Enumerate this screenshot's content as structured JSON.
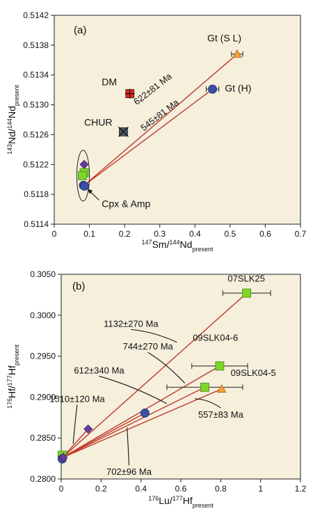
{
  "chart_data": [
    {
      "panel_label": "(a)",
      "type": "scatter",
      "xlabel": {
        "sup": "147",
        "main": "Sm/",
        "sup2": "144",
        "main2": "Nd",
        "sub": "present"
      },
      "ylabel": {
        "sup": "143",
        "main": "Nd/",
        "sup2": "144",
        "main2": "Nd",
        "sub": "present"
      },
      "xlim": [
        0,
        0.7
      ],
      "ylim": [
        0.5114,
        0.5142
      ],
      "xticks": [
        0,
        0.1,
        0.2,
        0.3,
        0.4,
        0.5,
        0.6,
        0.7
      ],
      "xtick_labels": [
        "0",
        "0.1",
        "0.2",
        "0.3",
        "0.4",
        "0.5",
        "0.6",
        "0.7"
      ],
      "yticks": [
        0.5114,
        0.5118,
        0.5122,
        0.5126,
        0.513,
        0.5134,
        0.5138,
        0.5142
      ],
      "ytick_labels": [
        "0.5114",
        "0.5118",
        "0.5122",
        "0.5126",
        "0.5130",
        "0.5134",
        "0.5138",
        "0.5142"
      ],
      "background": "#f5efdc",
      "points": [
        {
          "id": "gt-sl",
          "x": 0.52,
          "y": 0.51368,
          "xerr": 0.016,
          "marker": "triangle",
          "color": "#f4a13c",
          "label": "Gt (S L)"
        },
        {
          "id": "gt-h",
          "x": 0.45,
          "y": 0.51321,
          "xerr": 0.018,
          "marker": "circle",
          "color": "#3a4fa8",
          "label": "Gt (H)"
        },
        {
          "id": "dm",
          "x": 0.215,
          "y": 0.51315,
          "marker": "square-plus",
          "color": "#e0261d",
          "label": "DM"
        },
        {
          "id": "chur",
          "x": 0.1967,
          "y": 0.512638,
          "marker": "square-x",
          "color": "#4a5866",
          "label": "CHUR"
        },
        {
          "id": "cpx-1",
          "x": 0.085,
          "y": 0.5122,
          "marker": "diamond",
          "color": "#6a3c9c"
        },
        {
          "id": "cpx-2",
          "x": 0.085,
          "y": 0.51209,
          "marker": "square",
          "color": "#7fd52a"
        },
        {
          "id": "cpx-3",
          "x": 0.08,
          "y": 0.51205,
          "marker": "square",
          "color": "#7fd52a"
        },
        {
          "id": "cpx-4",
          "x": 0.083,
          "y": 0.51192,
          "marker": "circle",
          "color": "#3a4fa8"
        },
        {
          "id": "cpx-5",
          "x": 0.086,
          "y": 0.51191,
          "marker": "circle",
          "color": "#3a4fa8"
        }
      ],
      "lines": [
        {
          "from": [
            0.085,
            0.51192
          ],
          "to": [
            0.52,
            0.51368
          ],
          "color": "#c0392b"
        },
        {
          "from": [
            0.085,
            0.51192
          ],
          "to": [
            0.45,
            0.51321
          ],
          "color": "#c0392b"
        }
      ],
      "ellipse": {
        "cx": 0.082,
        "cy": 0.51205,
        "rx": 0.018,
        "ry": 0.00034
      },
      "texts": [
        {
          "id": "gt-sl-label",
          "text": "Gt (S L)",
          "x": 0.435,
          "y": 0.51385
        },
        {
          "id": "gt-h-label",
          "text": "Gt (H)",
          "x": 0.485,
          "y": 0.51318
        },
        {
          "id": "dm-label",
          "text": "DM",
          "x": 0.135,
          "y": 0.51326
        },
        {
          "id": "chur-label",
          "text": "CHUR",
          "x": 0.085,
          "y": 0.51272
        }
      ],
      "ages": [
        {
          "id": "age-622",
          "text": "622±81 Ma",
          "x": 0.285,
          "y": 0.51318,
          "angle": -38
        },
        {
          "id": "age-545",
          "text": "545±81 Ma",
          "x": 0.305,
          "y": 0.51283,
          "angle": -38
        }
      ],
      "annotation": {
        "text": "Cpx & Amp",
        "tx": 0.135,
        "ty": 0.51163,
        "ax": 0.095,
        "ay": 0.51187
      }
    },
    {
      "panel_label": "(b)",
      "type": "scatter",
      "xlabel": {
        "sup": "176",
        "main": "Lu/",
        "sup2": "177",
        "main2": "Hf",
        "sub": "present"
      },
      "ylabel": {
        "sup": "176",
        "main": "Hf/",
        "sup2": "177",
        "main2": "Hf",
        "sub": "present"
      },
      "xlim": [
        0,
        1.2
      ],
      "ylim": [
        0.28,
        0.305
      ],
      "xticks": [
        0,
        0.2,
        0.4,
        0.6,
        0.8,
        1.0,
        1.2
      ],
      "xtick_labels": [
        "0",
        "0.2",
        "0.4",
        "0.6",
        "0.8",
        "1",
        "1.2"
      ],
      "yticks": [
        0.28,
        0.285,
        0.29,
        0.295,
        0.3,
        0.305
      ],
      "ytick_labels": [
        "0.2800",
        "0.2850",
        "0.2900",
        "0.2950",
        "0.3000",
        "0.3050"
      ],
      "background": "#f5efdc",
      "points": [
        {
          "id": "07slk25",
          "x": 0.93,
          "y": 0.3027,
          "xerr": 0.12,
          "marker": "square",
          "color": "#7fd52a",
          "label": "07SLK25"
        },
        {
          "id": "09slk04-6",
          "x": 0.795,
          "y": 0.2938,
          "xerr": 0.14,
          "marker": "square",
          "color": "#7fd52a",
          "label": "09SLK04-6"
        },
        {
          "id": "09slk04-5",
          "x": 0.72,
          "y": 0.2912,
          "xerr": 0.19,
          "marker": "square",
          "color": "#7fd52a",
          "label": "09SLK04-5"
        },
        {
          "id": "tri-b",
          "x": 0.805,
          "y": 0.291,
          "marker": "triangle",
          "color": "#f4a13c"
        },
        {
          "id": "circ-042",
          "x": 0.42,
          "y": 0.28805,
          "marker": "circle",
          "color": "#3a4fa8"
        },
        {
          "id": "dia-014",
          "x": 0.135,
          "y": 0.2861,
          "marker": "diamond",
          "color": "#6a3c9c"
        },
        {
          "id": "base-sq",
          "x": 0.005,
          "y": 0.2829,
          "marker": "square",
          "color": "#7fd52a"
        },
        {
          "id": "base-c1",
          "x": 0.005,
          "y": 0.28245,
          "marker": "circle",
          "color": "#3a4fa8"
        },
        {
          "id": "base-d1",
          "x": 0.01,
          "y": 0.28265,
          "marker": "diamond",
          "color": "#6a3c9c"
        }
      ],
      "lines": [
        {
          "from": [
            0.005,
            0.2826
          ],
          "to": [
            0.93,
            0.3027
          ],
          "color": "#c0392b"
        },
        {
          "from": [
            0.005,
            0.2826
          ],
          "to": [
            0.795,
            0.2938
          ],
          "color": "#c0392b"
        },
        {
          "from": [
            0.005,
            0.2826
          ],
          "to": [
            0.72,
            0.2912
          ],
          "color": "#c0392b"
        },
        {
          "from": [
            0.005,
            0.2826
          ],
          "to": [
            0.805,
            0.291
          ],
          "color": "#c0392b"
        },
        {
          "from": [
            0.005,
            0.2826
          ],
          "to": [
            0.42,
            0.28805
          ],
          "color": "#c0392b"
        },
        {
          "from": [
            0.005,
            0.2826
          ],
          "to": [
            0.135,
            0.2861
          ],
          "color": "#c0392b"
        }
      ],
      "ages": [
        {
          "id": "age-1132",
          "text": "1132±270 Ma",
          "tx": 0.35,
          "ty": 0.2986,
          "px": 0.58,
          "py": 0.2967
        },
        {
          "id": "age-744",
          "text": "744±270 Ma",
          "tx": 0.435,
          "ty": 0.2958,
          "px": 0.62,
          "py": 0.2917
        },
        {
          "id": "age-612",
          "text": "612±340 Ma",
          "tx": 0.19,
          "ty": 0.2929,
          "px": 0.53,
          "py": 0.2892
        },
        {
          "id": "age-1510",
          "text": "1510±120 Ma",
          "tx": 0.08,
          "ty": 0.2894,
          "px": 0.06,
          "py": 0.2843
        },
        {
          "id": "age-557",
          "text": "557±83 Ma",
          "tx": 0.8,
          "ty": 0.2875,
          "px": 0.67,
          "py": 0.2898
        },
        {
          "id": "age-702",
          "text": "702±96 Ma",
          "tx": 0.34,
          "ty": 0.2805,
          "px": 0.33,
          "py": 0.2863
        }
      ]
    }
  ]
}
